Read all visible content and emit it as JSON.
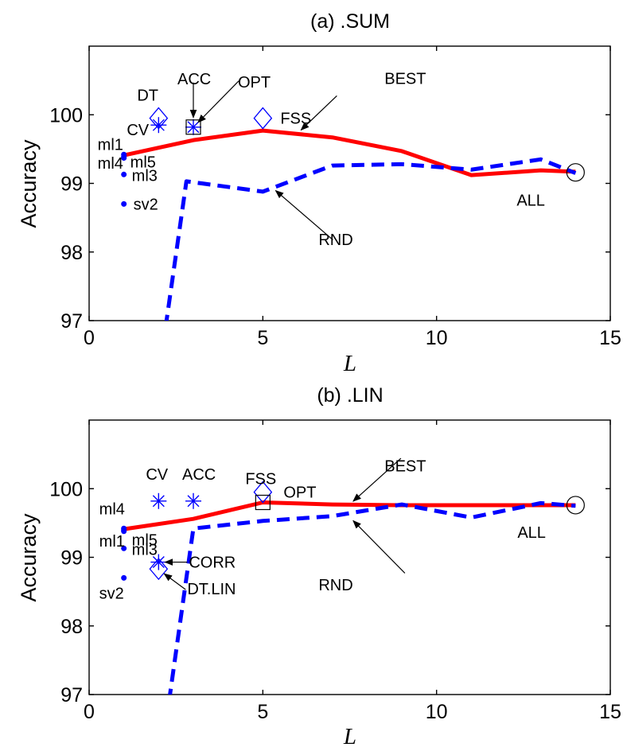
{
  "chart_data": [
    {
      "type": "line",
      "title": "(a) .SUM",
      "xlabel": "L",
      "ylabel": "Accuracy",
      "xlim": [
        0,
        15
      ],
      "ylim": [
        97,
        101
      ],
      "xticks": [
        0,
        5,
        10,
        15
      ],
      "yticks": [
        97,
        98,
        99,
        100
      ],
      "series": [
        {
          "name": "BEST",
          "color": "#ff0000",
          "style": "solid",
          "x": [
            1,
            3,
            5,
            7,
            9,
            11,
            13,
            14
          ],
          "y": [
            99.41,
            99.63,
            99.77,
            99.67,
            99.47,
            99.12,
            99.19,
            99.17
          ]
        },
        {
          "name": "RND",
          "color": "#0000ff",
          "style": "dashed",
          "x": [
            2.2,
            2.8,
            5,
            7,
            9,
            11,
            13,
            14
          ],
          "y": [
            96.9,
            99.03,
            98.88,
            99.26,
            99.28,
            99.2,
            99.35,
            99.15
          ]
        }
      ],
      "points": [
        {
          "label": "ml1",
          "x": 1,
          "y": 99.42,
          "marker": "dot"
        },
        {
          "label": "ml4",
          "x": 1,
          "y": 99.39,
          "marker": "dot"
        },
        {
          "label": "ml5",
          "x": 1,
          "y": 99.37,
          "marker": "dot"
        },
        {
          "label": "ml3",
          "x": 1,
          "y": 99.13,
          "marker": "dot"
        },
        {
          "label": "sv2",
          "x": 1,
          "y": 98.7,
          "marker": "dot"
        },
        {
          "label": "DT",
          "x": 2,
          "y": 99.95,
          "marker": "diamond"
        },
        {
          "label": "CV",
          "x": 2,
          "y": 99.85,
          "marker": "star"
        },
        {
          "label": "ACC",
          "x": 3,
          "y": 99.82,
          "marker": "star"
        },
        {
          "label": "OPT",
          "x": 3,
          "y": 99.82,
          "marker": "square"
        },
        {
          "label": "FSS",
          "x": 5,
          "y": 99.95,
          "marker": "diamond"
        },
        {
          "label": "ALL",
          "x": 14,
          "y": 99.16,
          "marker": "circle"
        }
      ]
    },
    {
      "type": "line",
      "title": "(b) .LIN",
      "xlabel": "L",
      "ylabel": "Accuracy",
      "xlim": [
        0,
        15
      ],
      "ylim": [
        97,
        101
      ],
      "xticks": [
        0,
        5,
        10,
        15
      ],
      "yticks": [
        97,
        98,
        99,
        100
      ],
      "series": [
        {
          "name": "BEST",
          "color": "#ff0000",
          "style": "solid",
          "x": [
            1,
            3,
            5,
            7,
            9,
            11,
            13,
            14
          ],
          "y": [
            99.41,
            99.56,
            99.8,
            99.77,
            99.76,
            99.76,
            99.76,
            99.76
          ]
        },
        {
          "name": "RND",
          "color": "#0000ff",
          "style": "dashed",
          "x": [
            2.3,
            3,
            5,
            7,
            9,
            11,
            13,
            14
          ],
          "y": [
            96.9,
            99.42,
            99.53,
            99.6,
            99.77,
            99.58,
            99.79,
            99.75
          ]
        }
      ],
      "points": [
        {
          "label": "ml4",
          "x": 1,
          "y": 99.42,
          "marker": "dot"
        },
        {
          "label": "ml1",
          "x": 1,
          "y": 99.4,
          "marker": "dot"
        },
        {
          "label": "ml5",
          "x": 1,
          "y": 99.38,
          "marker": "dot"
        },
        {
          "label": "ml3",
          "x": 1,
          "y": 99.13,
          "marker": "dot"
        },
        {
          "label": "sv2",
          "x": 1,
          "y": 98.7,
          "marker": "dot"
        },
        {
          "label": "CV",
          "x": 2,
          "y": 99.82,
          "marker": "star"
        },
        {
          "label": "ACC",
          "x": 3,
          "y": 99.82,
          "marker": "star"
        },
        {
          "label": "FSS",
          "x": 5,
          "y": 99.95,
          "marker": "diamond"
        },
        {
          "label": "OPT",
          "x": 5,
          "y": 99.8,
          "marker": "square"
        },
        {
          "label": "CORR",
          "x": 2,
          "y": 98.93,
          "marker": "star"
        },
        {
          "label": "DT.LIN",
          "x": 2,
          "y": 98.83,
          "marker": "diamond"
        },
        {
          "label": "ALL",
          "x": 14,
          "y": 99.76,
          "marker": "circle"
        }
      ]
    }
  ]
}
